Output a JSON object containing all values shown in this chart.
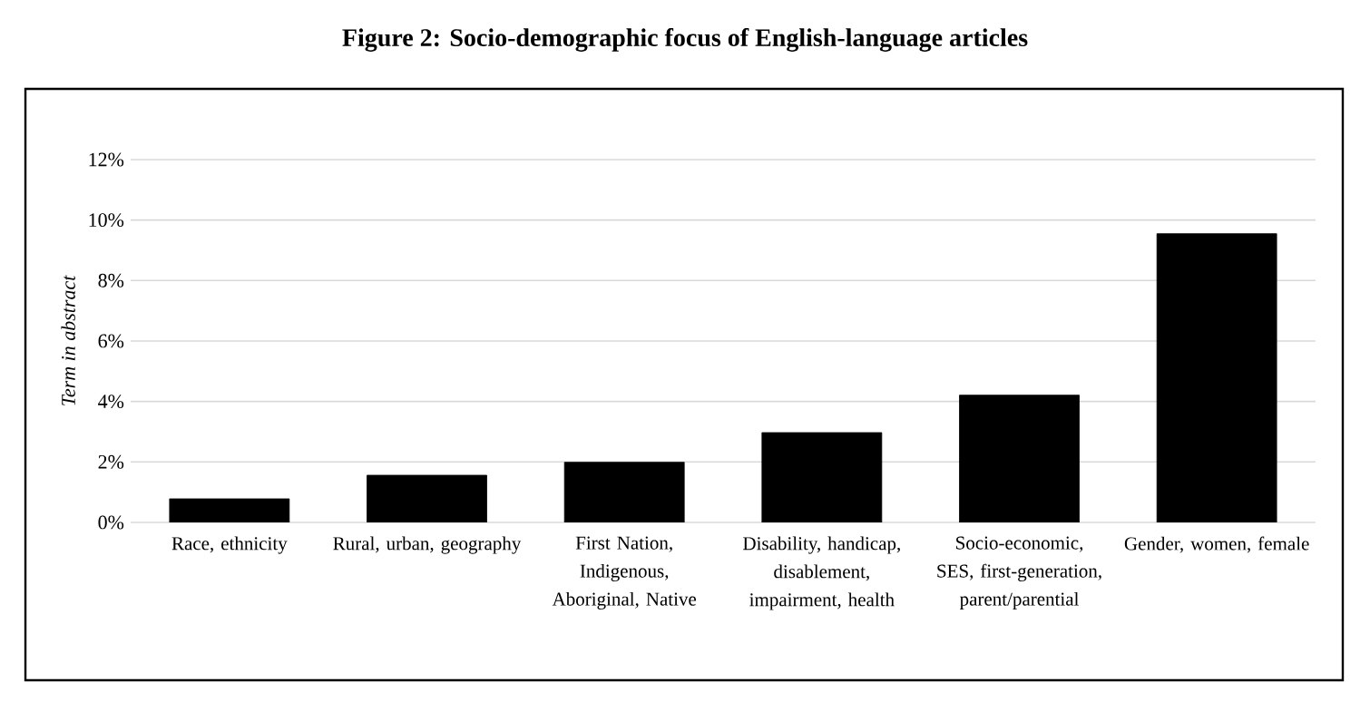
{
  "chart_data": {
    "type": "bar",
    "title": "Figure 2: Socio-demographic focus of English-language articles",
    "ylabel": "Term in abstract",
    "categories": [
      "Race, ethnicity",
      "Rural, urban, geography",
      "First Nation, Indigenous, Aboriginal, Native",
      "Disability, handicap, disablement, impairment, health",
      "Socio-economic, SES, first-generation, parent/parential",
      "Gender, women, female"
    ],
    "values": [
      0.78,
      1.56,
      1.99,
      2.97,
      4.21,
      9.55
    ],
    "color": "#000000",
    "ylim": [
      0,
      12
    ],
    "yticks": [
      {
        "value": 0,
        "label": "0%"
      },
      {
        "value": 2,
        "label": "2%"
      },
      {
        "value": 4,
        "label": "4%"
      },
      {
        "value": 6,
        "label": "6%"
      },
      {
        "value": 8,
        "label": "8%"
      },
      {
        "value": 10,
        "label": "10%"
      },
      {
        "value": 12,
        "label": "12%"
      }
    ],
    "grid": "y"
  }
}
